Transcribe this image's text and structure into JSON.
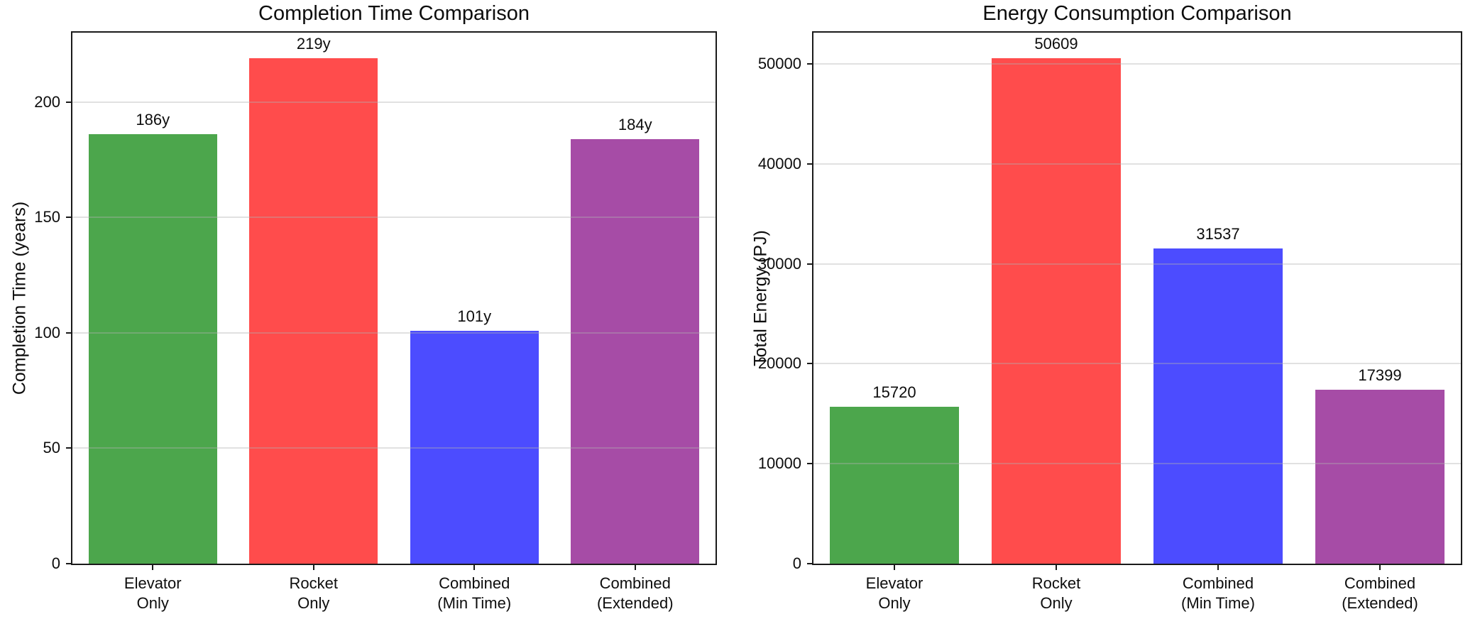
{
  "figure": {
    "background": "#ffffff"
  },
  "chart_data": [
    {
      "type": "bar",
      "title": "Completion Time Comparison",
      "ylabel": "Completion Time (years)",
      "xlabel": "",
      "categories": [
        "Elevator\nOnly",
        "Rocket\nOnly",
        "Combined\n(Min Time)",
        "Combined\n(Extended)"
      ],
      "values": [
        186,
        219,
        101,
        184
      ],
      "bar_labels": [
        "186y",
        "219y",
        "101y",
        "184y"
      ],
      "bar_colors": [
        "#4ca64c",
        "#ff4c4c",
        "#4c4cff",
        "#a64ca6"
      ],
      "yticks": [
        0,
        50,
        100,
        150,
        200
      ],
      "ylim": [
        0,
        230
      ],
      "grid": true,
      "legend": false
    },
    {
      "type": "bar",
      "title": "Energy Consumption Comparison",
      "ylabel": "Total Energy (PJ)",
      "xlabel": "",
      "categories": [
        "Elevator\nOnly",
        "Rocket\nOnly",
        "Combined\n(Min Time)",
        "Combined\n(Extended)"
      ],
      "values": [
        15720,
        50609,
        31537,
        17399
      ],
      "bar_labels": [
        "15720",
        "50609",
        "31537",
        "17399"
      ],
      "bar_colors": [
        "#4ca64c",
        "#ff4c4c",
        "#4c4cff",
        "#a64ca6"
      ],
      "yticks": [
        0,
        10000,
        20000,
        30000,
        40000,
        50000
      ],
      "ylim": [
        0,
        53139
      ],
      "grid": true,
      "legend": false
    }
  ]
}
